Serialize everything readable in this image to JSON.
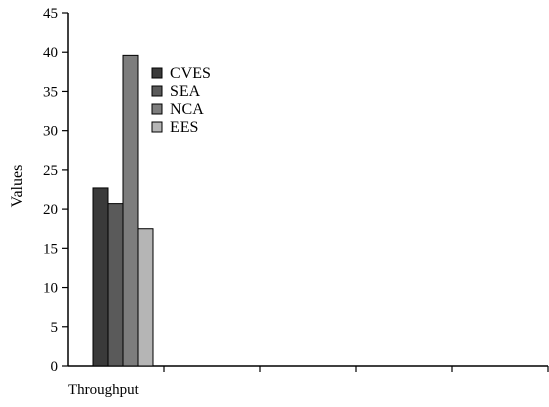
{
  "chart_data": {
    "type": "bar",
    "title": "",
    "xlabel": "",
    "ylabel": "Values",
    "ylim": [
      0,
      45
    ],
    "yticks": [
      0,
      5,
      10,
      15,
      20,
      25,
      30,
      35,
      40,
      45
    ],
    "categories": [
      "Throughput"
    ],
    "series": [
      {
        "name": "CVES",
        "values": [
          22.7
        ],
        "color": "#3a3a3a"
      },
      {
        "name": "SEA",
        "values": [
          20.7
        ],
        "color": "#5a5a5a"
      },
      {
        "name": "NCA",
        "values": [
          39.6
        ],
        "color": "#7d7d7d"
      },
      {
        "name": "EES",
        "values": [
          17.5
        ],
        "color": "#b5b5b5"
      }
    ],
    "grid": false,
    "legend_position": "top-left-inside"
  }
}
